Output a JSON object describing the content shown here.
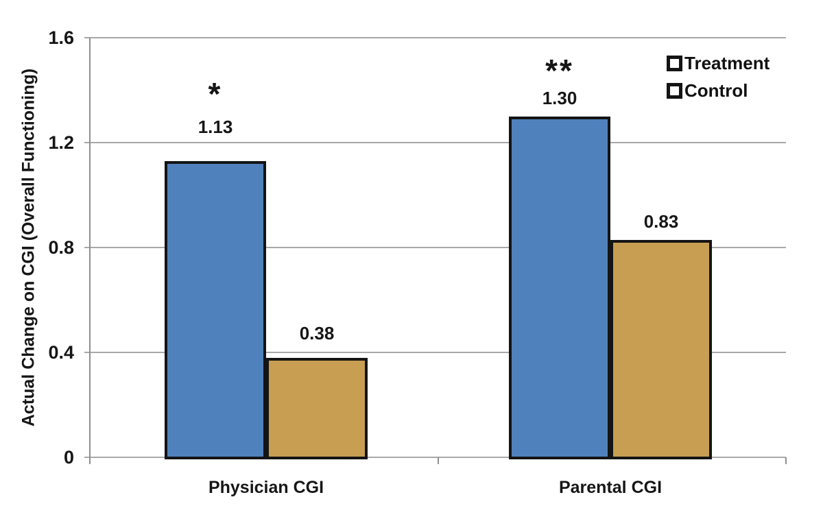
{
  "colors": {
    "treatment": "#4f81bd",
    "control": "#c89e52",
    "bar_border": "#141414",
    "gridline": "#a8a8a8",
    "axis": "#8f8f8f",
    "text": "#161616",
    "background": "#ffffff"
  },
  "chart_data": {
    "type": "bar",
    "title": "",
    "xlabel": "",
    "ylabel": "Actual Change on CGI (Overall Functioning)",
    "ylim": [
      0,
      1.6
    ],
    "grid": true,
    "legend_position": "top-right",
    "categories": [
      "Physician CGI",
      "Parental CGI"
    ],
    "series": [
      {
        "name": "Treatment",
        "color": "#4f81bd",
        "values": [
          1.13,
          1.3
        ],
        "labels": [
          "1.13",
          "1.30"
        ]
      },
      {
        "name": "Control",
        "color": "#c89e52",
        "values": [
          0.38,
          0.83
        ],
        "labels": [
          "0.38",
          "0.83"
        ]
      }
    ],
    "yticks": [
      {
        "value": 0,
        "label": "0"
      },
      {
        "value": 0.4,
        "label": "0.4"
      },
      {
        "value": 0.8,
        "label": "0.8"
      },
      {
        "value": 1.2,
        "label": "1.2"
      },
      {
        "value": 1.6,
        "label": "1.6"
      }
    ],
    "annotations": [
      {
        "text": "*",
        "category": "Physician CGI",
        "series": "Treatment"
      },
      {
        "text": "**",
        "category": "Parental CGI",
        "series": "Treatment"
      }
    ]
  }
}
